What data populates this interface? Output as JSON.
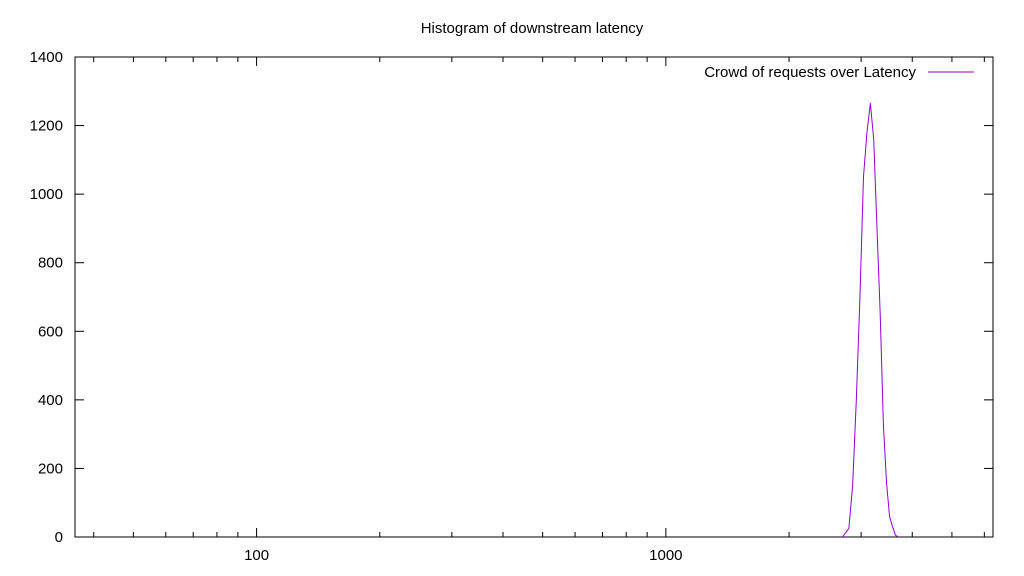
{
  "chart_data": {
    "type": "line",
    "title": "Histogram of downstream latency",
    "xlabel": "",
    "ylabel": "",
    "x_scale": "log",
    "xlim": [
      36,
      6300
    ],
    "ylim": [
      0,
      1400
    ],
    "x_ticks": [
      100,
      1000
    ],
    "y_ticks": [
      0,
      200,
      400,
      600,
      800,
      1000,
      1200,
      1400
    ],
    "grid": false,
    "legend_position": "top-right",
    "colors": {
      "series": "#9400d3",
      "axes": "#000000"
    },
    "series": [
      {
        "name": "Crowd of requests over Latency",
        "x": [
          2700,
          2800,
          2860,
          2920,
          2980,
          3040,
          3100,
          3160,
          3220,
          3280,
          3340,
          3400,
          3460,
          3520,
          3580,
          3640,
          3700
        ],
        "values": [
          0,
          25,
          150,
          400,
          700,
          1050,
          1180,
          1265,
          1160,
          900,
          650,
          330,
          160,
          60,
          30,
          5,
          0
        ]
      }
    ]
  }
}
